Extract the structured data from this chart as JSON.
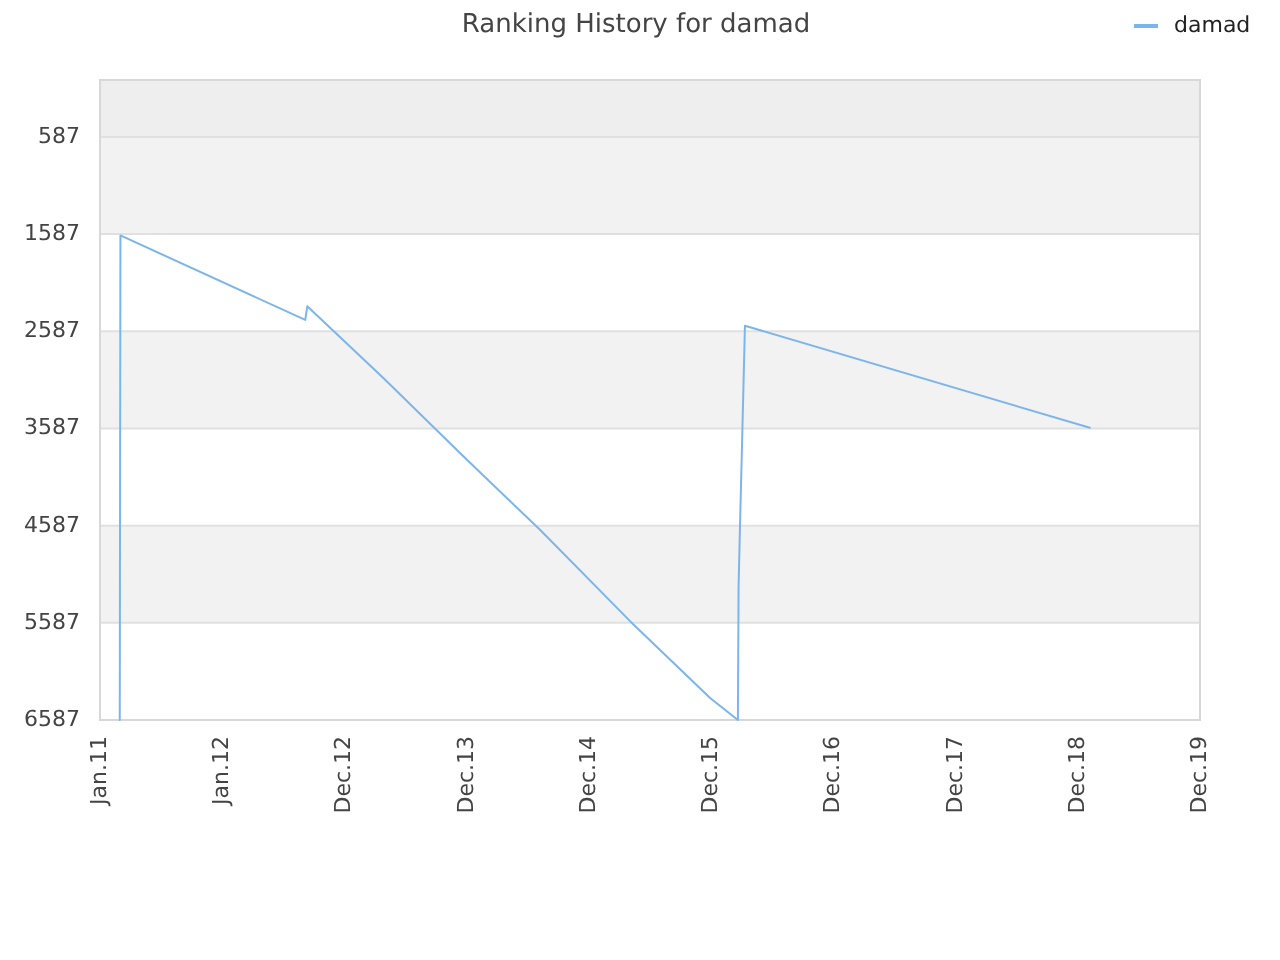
{
  "chart_data": {
    "type": "line",
    "title": "Ranking History for damad",
    "x": [
      "2011-03-01",
      "2011-03-03",
      "2012-09-05",
      "2012-09-11",
      "2013-04-27",
      "2013-12-11",
      "2014-08-07",
      "2015-05-03",
      "2015-12-28",
      "2016-03-20",
      "2016-03-22",
      "2016-03-26",
      "2016-04-01",
      "2016-04-10",
      "2019-02-04"
    ],
    "series": [
      {
        "name": "damad",
        "color": "#7cb5ec",
        "values": [
          6587,
          1600,
          2470,
          2330,
          3070,
          3840,
          4630,
          5570,
          6360,
          6587,
          5220,
          4630,
          3800,
          2530,
          3580
        ]
      }
    ],
    "xlim": [
      "2011-01-01",
      "2019-12-30"
    ],
    "xticks": [
      {
        "value": "2011-01-01",
        "label": "Jan.11"
      },
      {
        "value": "2012-01-01",
        "label": "Jan.12"
      },
      {
        "value": "2012-12-31",
        "label": "Dec.12"
      },
      {
        "value": "2013-12-31",
        "label": "Dec.13"
      },
      {
        "value": "2014-12-31",
        "label": "Dec.14"
      },
      {
        "value": "2015-12-31",
        "label": "Dec.15"
      },
      {
        "value": "2016-12-30",
        "label": "Dec.16"
      },
      {
        "value": "2017-12-30",
        "label": "Dec.17"
      },
      {
        "value": "2018-12-30",
        "label": "Dec.18"
      },
      {
        "value": "2019-12-30",
        "label": "Dec.19"
      }
    ],
    "ylim": [
      6587,
      1
    ],
    "yticks": [
      587,
      1587,
      2587,
      3587,
      4587,
      5587,
      6587
    ],
    "grid": "y",
    "legend": "top right",
    "marker": "none",
    "line_style": "solid",
    "bands": [
      {
        "axis": "y",
        "from": 1,
        "to": 587,
        "color": "#eeeeee"
      },
      {
        "axis": "y",
        "from": 587,
        "to": 1587,
        "color": "#f2f2f2"
      },
      {
        "axis": "y",
        "from": 2587,
        "to": 3587,
        "color": "#f2f2f2"
      },
      {
        "axis": "y",
        "from": 4587,
        "to": 5587,
        "color": "#f2f2f2"
      }
    ]
  }
}
